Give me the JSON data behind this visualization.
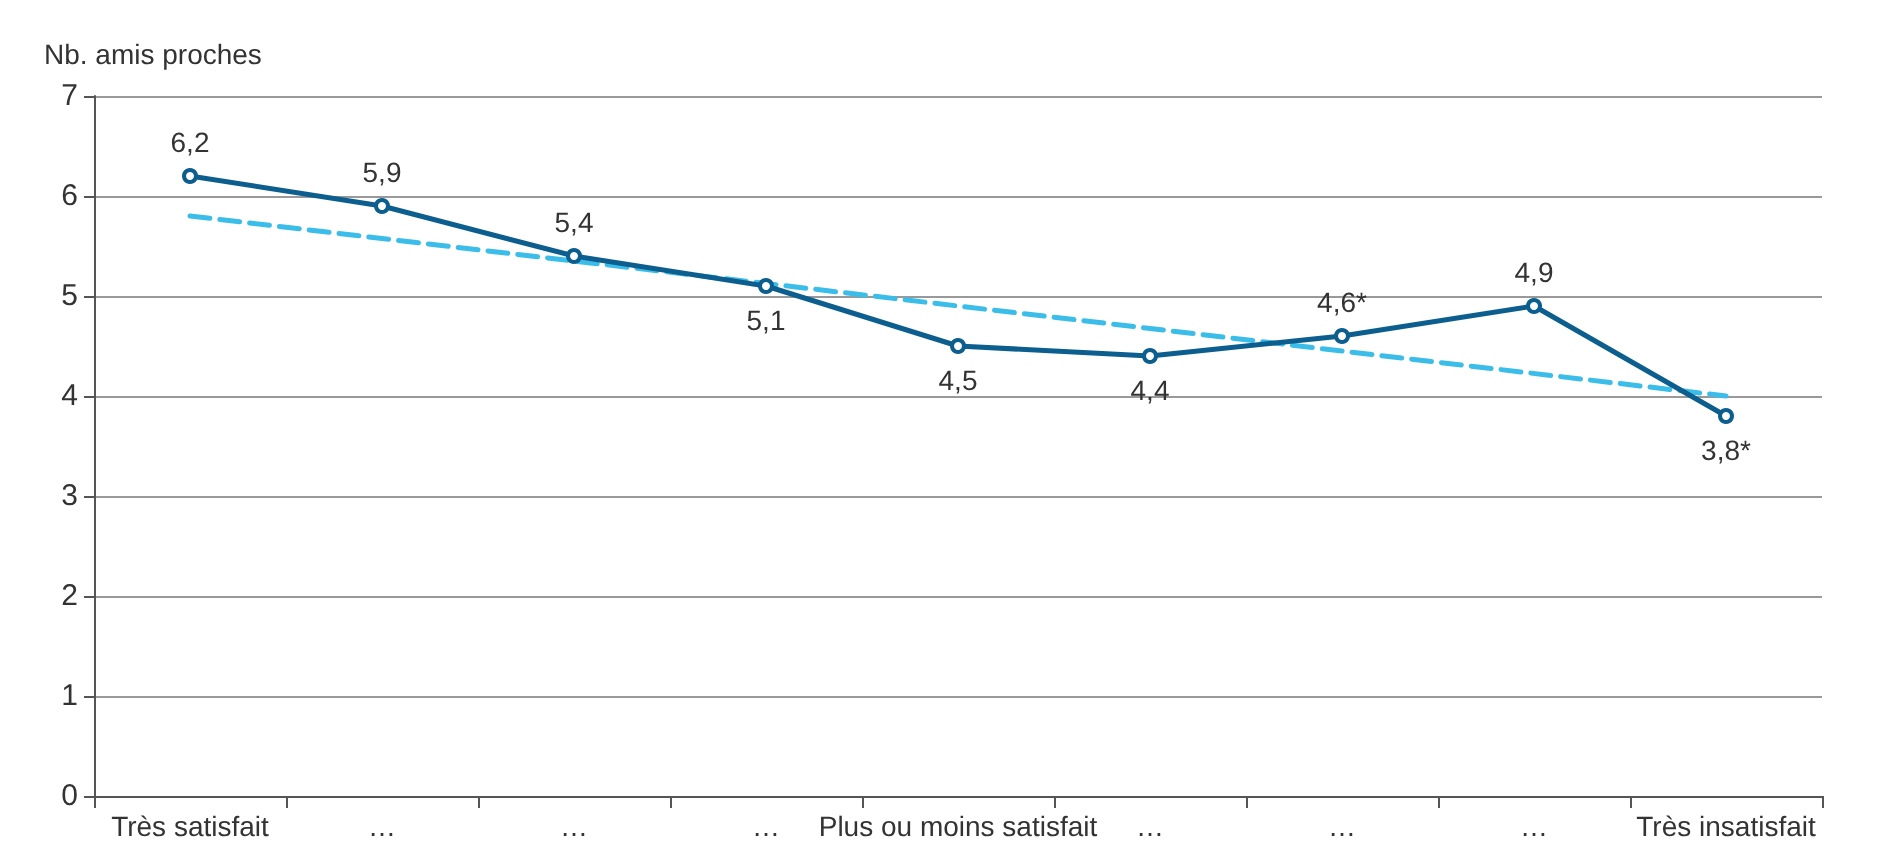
{
  "chart_data": {
    "type": "line",
    "ylabel": "Nb. amis proches",
    "categories": [
      "Très satisfait",
      "…",
      "…",
      "…",
      "Plus ou moins satisfait",
      "…",
      "…",
      "…",
      "Très insatisfait"
    ],
    "series": [
      {
        "color": "#0b5e8e",
        "values": [
          6.2,
          5.9,
          5.4,
          5.1,
          4.5,
          4.4,
          4.6,
          4.9,
          3.8
        ],
        "value_labels": [
          "6,2",
          "5,9",
          "5,4",
          "5,1",
          "4,5",
          "4,4",
          "4,6*",
          "4,9",
          "3,8*"
        ],
        "marker": "circle",
        "line_style": "solid"
      },
      {
        "type": "line",
        "color": "#3bbde9",
        "x": [
          "Très satisfait",
          "Très insatisfait"
        ],
        "values": [
          5.8,
          4.0
        ],
        "marker": "none",
        "line_style": "dashed"
      }
    ],
    "ylim": [
      0,
      7
    ],
    "yticks": [
      0,
      1,
      2,
      3,
      4,
      5,
      6,
      7
    ],
    "grid": "y"
  }
}
